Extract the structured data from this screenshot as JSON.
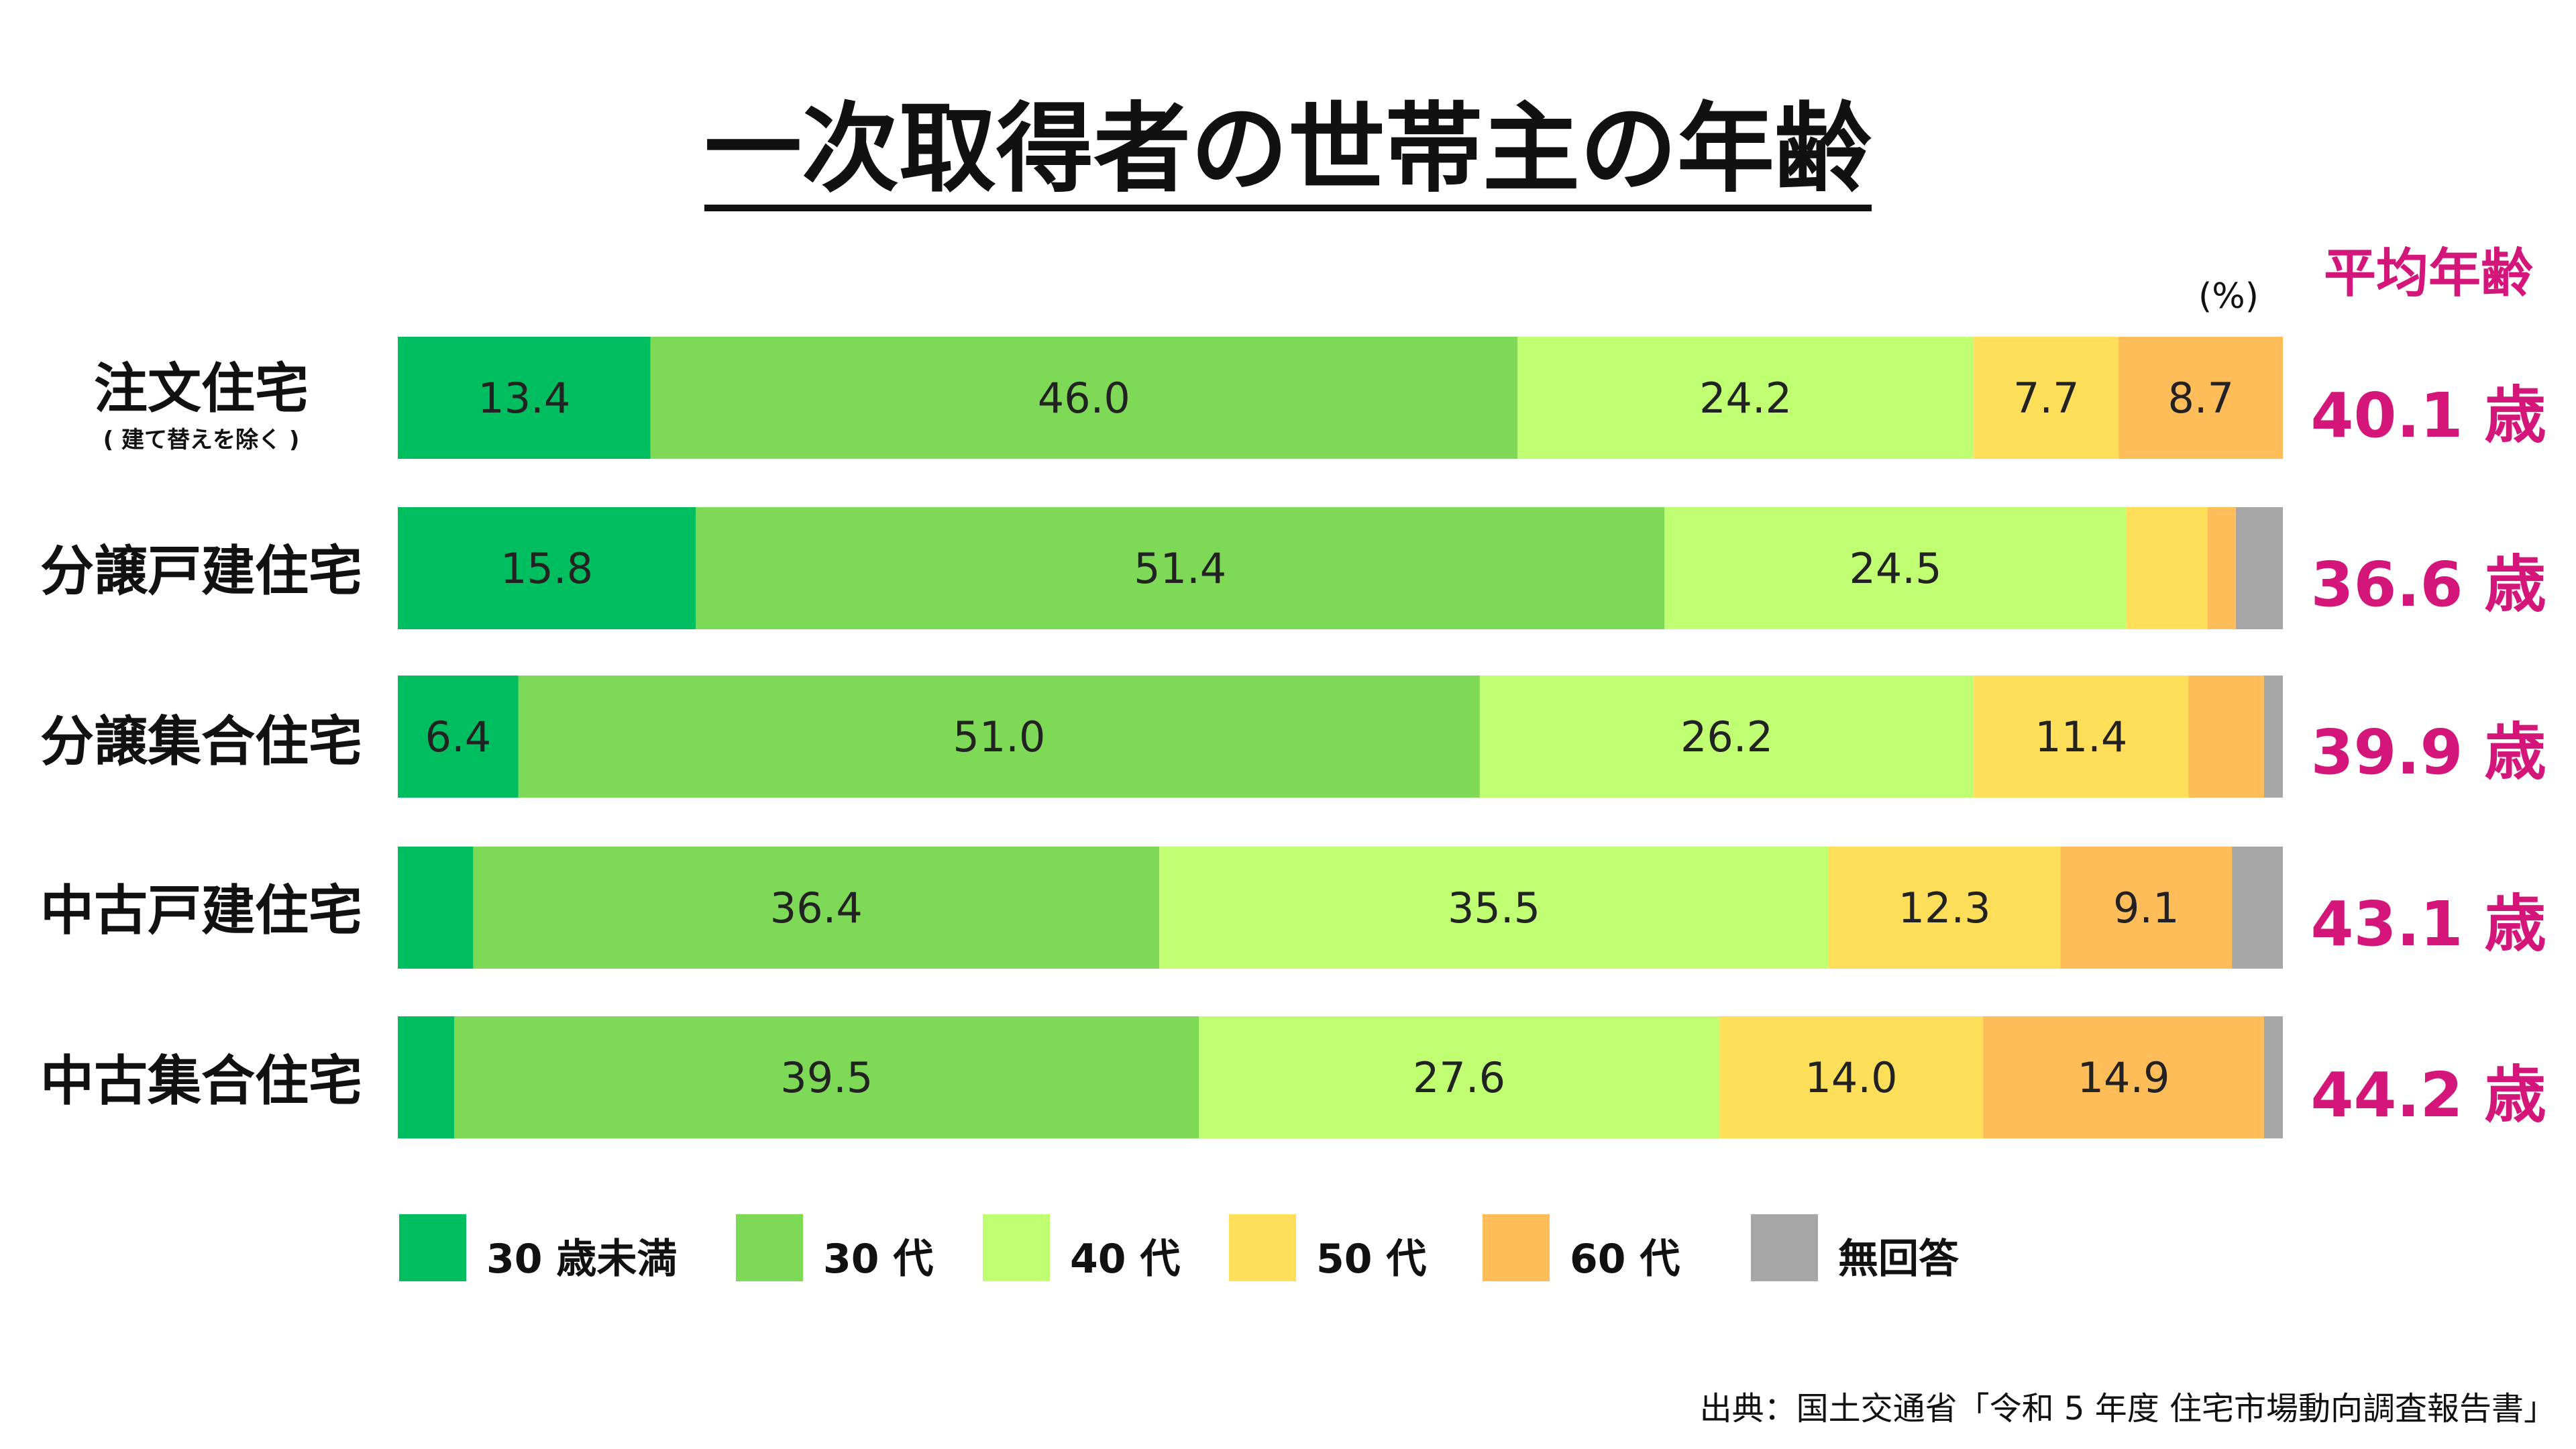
{
  "title": "一次取得者の世帯主の年齢",
  "unit_label": "(%)",
  "avg_header": "平均年齢",
  "source": "出典：国土交通省「令和 5 年度 住宅市場動向調査報告書」",
  "chart_data": {
    "type": "bar",
    "orientation": "horizontal",
    "stacked": true,
    "xlim": [
      0,
      100
    ],
    "categories": [
      "注文住宅",
      "分譲戸建住宅",
      "分譲集合住宅",
      "中古戸建住宅",
      "中古集合住宅"
    ],
    "category_notes": [
      "( 建て替えを除く )",
      "",
      "",
      "",
      ""
    ],
    "series": [
      {
        "name": "30 歳未満",
        "color": "#00bd5f",
        "values": [
          13.4,
          15.8,
          6.4,
          4.0,
          3.0
        ]
      },
      {
        "name": "30 代",
        "color": "#7ed957",
        "values": [
          46.0,
          51.4,
          51.0,
          36.4,
          39.5
        ]
      },
      {
        "name": "40 代",
        "color": "#c1ff72",
        "values": [
          24.2,
          24.5,
          26.2,
          35.5,
          27.6
        ]
      },
      {
        "name": "50 代",
        "color": "#ffde59",
        "values": [
          7.7,
          4.3,
          11.4,
          12.3,
          14.0
        ]
      },
      {
        "name": "60 代",
        "color": "#ffbd59",
        "values": [
          8.7,
          1.5,
          4.0,
          9.1,
          14.9
        ]
      },
      {
        "name": "無回答",
        "color": "#a6a6a6",
        "values": [
          0,
          2.5,
          1.0,
          2.7,
          1.0
        ]
      }
    ],
    "data_labels": [
      [
        "13.4",
        "46.0",
        "24.2",
        "7.7",
        "8.7",
        ""
      ],
      [
        "15.8",
        "51.4",
        "24.5",
        "",
        "",
        ""
      ],
      [
        "6.4",
        "51.0",
        "26.2",
        "11.4",
        "",
        ""
      ],
      [
        "",
        "36.4",
        "35.5",
        "12.3",
        "9.1",
        ""
      ],
      [
        "",
        "39.5",
        "27.6",
        "14.0",
        "14.9",
        ""
      ]
    ],
    "averages": [
      "40.1 歳",
      "36.6 歳",
      "39.9 歳",
      "43.1 歳",
      "44.2 歳"
    ],
    "legend_position": "bottom",
    "grid": false
  }
}
